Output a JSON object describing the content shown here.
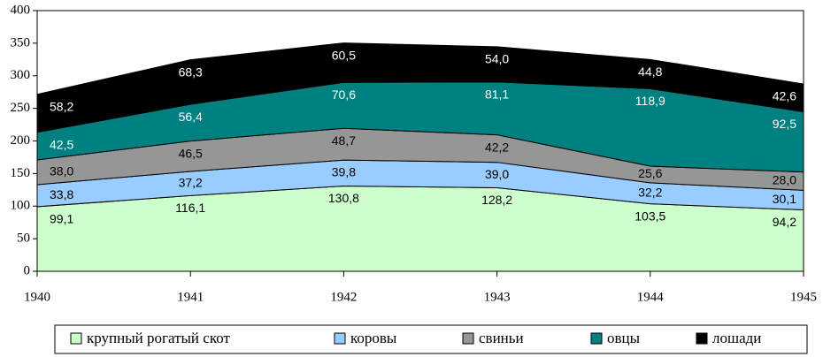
{
  "chart_data": {
    "type": "stacked_area",
    "x": [
      1940,
      1941,
      1942,
      1943,
      1944,
      1945
    ],
    "xlim": [
      1940,
      1945
    ],
    "xticks": [
      1940,
      1941,
      1942,
      1943,
      1944,
      1945
    ],
    "ylim": [
      0,
      400
    ],
    "yticks": [
      0,
      50,
      100,
      150,
      200,
      250,
      300,
      350,
      400
    ],
    "legend": "bottom",
    "series": [
      {
        "name": "крупный рогатый скот",
        "color": "#ccffcc",
        "values": [
          99.1,
          116.1,
          130.8,
          128.2,
          103.5,
          94.2
        ],
        "value_labels": [
          "99,1",
          "116,1",
          "130,8",
          "128,2",
          "103,5",
          "94,2"
        ]
      },
      {
        "name": "коровы",
        "color": "#99ccff",
        "values": [
          33.8,
          37.2,
          39.8,
          39.0,
          32.2,
          30.1
        ],
        "value_labels": [
          "33,8",
          "37,2",
          "39,8",
          "39,0",
          "32,2",
          "30,1"
        ]
      },
      {
        "name": "свиньи",
        "color": "#969696",
        "values": [
          38.0,
          46.5,
          48.7,
          42.2,
          25.6,
          28.0
        ],
        "value_labels": [
          "38,0",
          "46,5",
          "48,7",
          "42,2",
          "25,6",
          "28,0"
        ]
      },
      {
        "name": "овцы",
        "color": "#008080",
        "values": [
          42.5,
          56.4,
          70.6,
          81.1,
          118.9,
          92.5
        ],
        "value_labels": [
          "42,5",
          "56,4",
          "70,6",
          "81,1",
          "118,9",
          "92,5"
        ]
      },
      {
        "name": "лошади",
        "color": "#000000",
        "values": [
          58.2,
          68.3,
          60.5,
          54.0,
          44.8,
          42.6
        ],
        "value_labels": [
          "58,2",
          "68,3",
          "60,5",
          "54,0",
          "44,8",
          "42,6"
        ]
      }
    ]
  }
}
